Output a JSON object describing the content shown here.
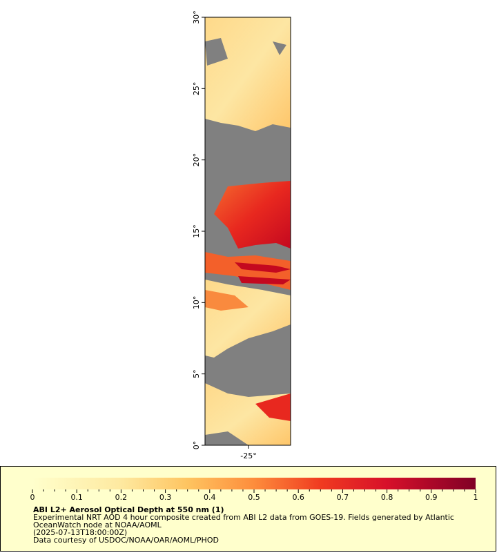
{
  "map": {
    "lat_ticks": [
      "0°",
      "5°",
      "10°",
      "15°",
      "20°",
      "25°",
      "30°"
    ],
    "lon_ticks": [
      "-25°"
    ]
  },
  "colorbar": {
    "ticks": [
      0,
      0.1,
      0.2,
      0.3,
      0.4,
      0.5,
      0.6,
      0.7,
      0.8,
      0.9,
      1
    ]
  },
  "legend": {
    "title": "ABI L2+ Aerosol Optical Depth at 550 nm (1)",
    "lines": [
      "Experimental NRT AOD 4 hour composite created from ABI L2 data from GOES-19. Fields generated by Atlantic",
      "OceanWatch node at NOAA/AOML",
      "(2025-07-13T18:00:00Z)",
      "Data courtesy of USDOC/NOAA/OAR/AOML/PHOD"
    ]
  }
}
